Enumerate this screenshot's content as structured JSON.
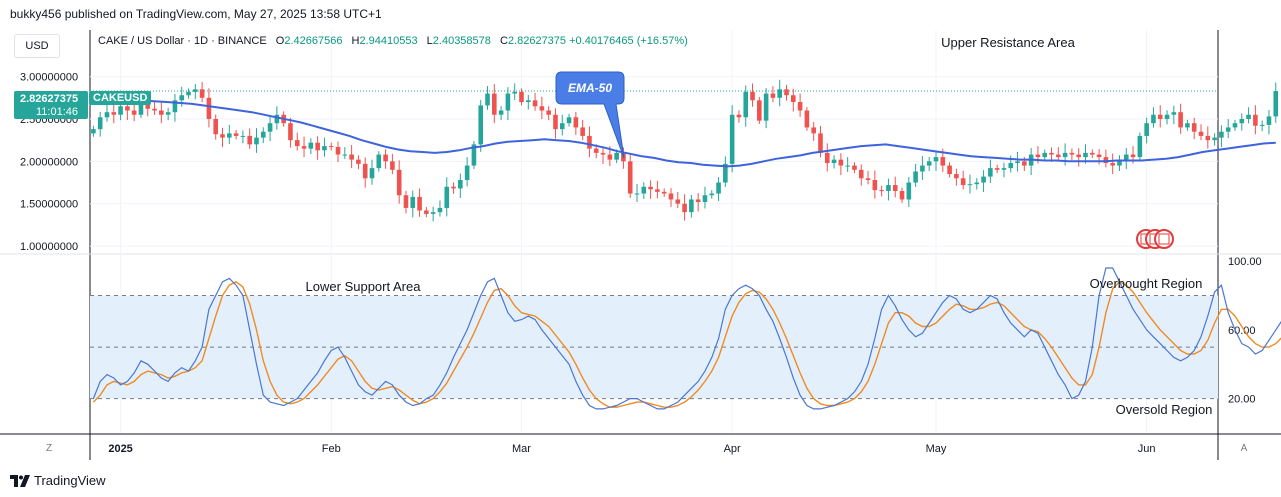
{
  "header": {
    "publisher": "bukky456 published on TradingView.com, May 27, 2025 13:58 UTC+1"
  },
  "currency": "USD",
  "legend": {
    "symbol": "CAKE / US Dollar · 1D · BINANCE",
    "o_label": "O",
    "o_value": "2.42667566",
    "h_label": "H",
    "h_value": "2.94410553",
    "l_label": "L",
    "l_value": "2.40358578",
    "c_label": "C",
    "c_value": "2.82627375",
    "change": "+0.40176465 (+16.57%)"
  },
  "price_tag": {
    "value": "2.82627375",
    "countdown": "11:01:46",
    "symbol": "CAKEUSD"
  },
  "annotations": {
    "upper": "Upper Resistance Area",
    "ema": "EMA-50",
    "lower": "Lower Support Area",
    "overbought": "Overbought Region",
    "oversold": "Oversold Region"
  },
  "buttons": {
    "left": "Z",
    "right": "A"
  },
  "footer": {
    "brand": "TradingView"
  },
  "colors": {
    "up": "#26a69a",
    "down": "#ef5350",
    "ema": "#3d63dd",
    "k_line": "#4b76d1",
    "d_line": "#f08a24",
    "band_fill": "#e3f0fb"
  },
  "chart_data": [
    {
      "type": "candlestick",
      "title": "CAKE / US Dollar · 1D · BINANCE",
      "y_ticks": [
        "3.00000000",
        "2.50000000",
        "2.00000000",
        "1.50000000",
        "1.00000000"
      ],
      "y_tick_values": [
        3.0,
        2.5,
        2.0,
        1.5,
        1.0
      ],
      "ylim": [
        0.93,
        3.55
      ],
      "x_tick_labels": [
        "2025",
        "Feb",
        "Mar",
        "Apr",
        "May",
        "Jun"
      ],
      "x_tick_days": [
        4,
        35,
        63,
        94,
        124,
        155
      ],
      "closes": [
        2.38,
        2.52,
        2.58,
        2.55,
        2.65,
        2.6,
        2.55,
        2.68,
        2.62,
        2.6,
        2.55,
        2.58,
        2.72,
        2.78,
        2.82,
        2.85,
        2.75,
        2.5,
        2.32,
        2.28,
        2.33,
        2.3,
        2.3,
        2.2,
        2.28,
        2.35,
        2.45,
        2.55,
        2.45,
        2.25,
        2.18,
        2.15,
        2.22,
        2.13,
        2.18,
        2.17,
        2.08,
        2.08,
        2.02,
        1.97,
        1.8,
        1.92,
        2.08,
        2.0,
        1.9,
        1.6,
        1.45,
        1.58,
        1.42,
        1.38,
        1.4,
        1.45,
        1.7,
        1.68,
        1.78,
        1.95,
        2.2,
        2.66,
        2.8,
        2.55,
        2.6,
        2.8,
        2.82,
        2.7,
        2.72,
        2.65,
        2.6,
        2.55,
        2.38,
        2.45,
        2.52,
        2.4,
        2.3,
        2.15,
        2.1,
        2.08,
        2.02,
        2.1,
        2.0,
        1.62,
        1.62,
        1.7,
        1.67,
        1.64,
        1.62,
        1.55,
        1.5,
        1.4,
        1.55,
        1.52,
        1.6,
        1.62,
        1.75,
        1.97,
        2.55,
        2.52,
        2.82,
        2.72,
        2.48,
        2.8,
        2.75,
        2.85,
        2.78,
        2.7,
        2.6,
        2.4,
        2.33,
        2.1,
        1.98,
        2.02,
        1.95,
        1.95,
        1.9,
        1.8,
        1.78,
        1.66,
        1.65,
        1.72,
        1.65,
        1.55,
        1.75,
        1.88,
        1.95,
        2.0,
        2.05,
        1.95,
        1.85,
        1.8,
        1.72,
        1.73,
        1.75,
        1.82,
        1.92,
        1.9,
        1.92,
        1.98,
        2.0,
        1.95,
        2.08,
        2.05,
        2.1,
        2.08,
        2.05,
        2.1,
        2.08,
        2.05,
        2.1,
        2.08,
        2.05,
        1.98,
        1.95,
        2.02,
        2.08,
        2.05,
        2.3,
        2.45,
        2.55,
        2.5,
        2.55,
        2.58,
        2.4,
        2.45,
        2.35,
        2.3,
        2.25,
        2.28,
        2.35,
        2.4,
        2.45,
        2.5,
        2.55,
        2.42,
        2.43,
        2.53,
        2.83
      ],
      "ema50": [
        2.74,
        2.74,
        2.73,
        2.73,
        2.72,
        2.71,
        2.7,
        2.69,
        2.68,
        2.66,
        2.64,
        2.62,
        2.6,
        2.58,
        2.55,
        2.52,
        2.49,
        2.46,
        2.42,
        2.38,
        2.34,
        2.3,
        2.25,
        2.21,
        2.17,
        2.14,
        2.12,
        2.11,
        2.1,
        2.11,
        2.13,
        2.16,
        2.18,
        2.21,
        2.23,
        2.24,
        2.25,
        2.26,
        2.25,
        2.24,
        2.22,
        2.19,
        2.16,
        2.12,
        2.09,
        2.06,
        2.04,
        2.01,
        1.99,
        1.98,
        1.96,
        1.95,
        1.94,
        1.95,
        1.97,
        2.0,
        2.03,
        2.05,
        2.07,
        2.1,
        2.12,
        2.14,
        2.16,
        2.18,
        2.19,
        2.2,
        2.18,
        2.16,
        2.14,
        2.12,
        2.1,
        2.08,
        2.06,
        2.05,
        2.04,
        2.03,
        2.02,
        2.02,
        2.01,
        2.01,
        2.0,
        2.0,
        2.0,
        2.0,
        2.01,
        2.01,
        2.01,
        2.02,
        2.03,
        2.05,
        2.08,
        2.11,
        2.13,
        2.15,
        2.17,
        2.19,
        2.21,
        2.22
      ]
    },
    {
      "type": "line",
      "series": [
        {
          "values": [
            20,
            30,
            34,
            32,
            28,
            30,
            35,
            42,
            40,
            36,
            32,
            30,
            35,
            38,
            36,
            42,
            50,
            72,
            80,
            88,
            90,
            86,
            80,
            60,
            40,
            22,
            18,
            17,
            16,
            18,
            20,
            25,
            30,
            35,
            42,
            48,
            50,
            44,
            36,
            28,
            24,
            22,
            26,
            30,
            28,
            22,
            18,
            16,
            17,
            20,
            22,
            28,
            35,
            44,
            52,
            60,
            70,
            80,
            88,
            90,
            80,
            70,
            65,
            66,
            68,
            66,
            60,
            55,
            50,
            45,
            40,
            30,
            22,
            16,
            14,
            14,
            15,
            16,
            18,
            20,
            20,
            18,
            16,
            14,
            14,
            16,
            18,
            22,
            26,
            30,
            36,
            44,
            55,
            72,
            80,
            84,
            86,
            84,
            80,
            72,
            65,
            55,
            44,
            32,
            22,
            16,
            14,
            14,
            15,
            16,
            18,
            20,
            24,
            30,
            40,
            55,
            72,
            80,
            74,
            66,
            60,
            56,
            58,
            64,
            70,
            76,
            80,
            78,
            72,
            70,
            72,
            76,
            80,
            78,
            70,
            64,
            60,
            56,
            60,
            58,
            50,
            42,
            34,
            28,
            20,
            22,
            30,
            50,
            80,
            96,
            96,
            88,
            80,
            72,
            66,
            60,
            56,
            52,
            48,
            44,
            42,
            44,
            48,
            56,
            68,
            82,
            86,
            70,
            60,
            52,
            50,
            46,
            48,
            54,
            60,
            66
          ]
        },
        {
          "values": [
            18,
            22,
            28,
            30,
            29,
            28,
            30,
            34,
            36,
            35,
            34,
            32,
            33,
            35,
            36,
            38,
            42,
            55,
            68,
            80,
            86,
            88,
            85,
            75,
            60,
            42,
            30,
            22,
            18,
            17,
            18,
            20,
            24,
            28,
            33,
            38,
            43,
            45,
            42,
            36,
            30,
            26,
            25,
            26,
            27,
            25,
            22,
            19,
            17,
            18,
            20,
            24,
            29,
            36,
            43,
            50,
            58,
            67,
            76,
            83,
            84,
            80,
            74,
            70,
            69,
            68,
            65,
            62,
            57,
            52,
            47,
            40,
            32,
            25,
            20,
            17,
            15,
            15,
            16,
            17,
            18,
            18,
            17,
            16,
            15,
            15,
            16,
            18,
            21,
            25,
            30,
            36,
            44,
            56,
            68,
            76,
            81,
            83,
            82,
            78,
            72,
            64,
            55,
            45,
            35,
            26,
            20,
            17,
            16,
            16,
            17,
            18,
            20,
            24,
            30,
            40,
            52,
            64,
            70,
            70,
            68,
            64,
            62,
            62,
            64,
            68,
            72,
            75,
            74,
            72,
            72,
            73,
            75,
            76,
            74,
            70,
            66,
            62,
            60,
            59,
            55,
            50,
            44,
            38,
            32,
            28,
            28,
            34,
            50,
            70,
            84,
            88,
            86,
            82,
            76,
            70,
            65,
            60,
            56,
            52,
            48,
            46,
            46,
            48,
            54,
            64,
            72,
            72,
            68,
            62,
            56,
            52,
            50,
            50,
            52,
            56
          ]
        }
      ],
      "y_ticks": [
        "100.00",
        "60.00",
        "20.00"
      ],
      "y_tick_values": [
        100,
        60,
        20
      ],
      "levels": [
        80,
        50,
        20
      ],
      "ylim": [
        0,
        103
      ]
    }
  ]
}
